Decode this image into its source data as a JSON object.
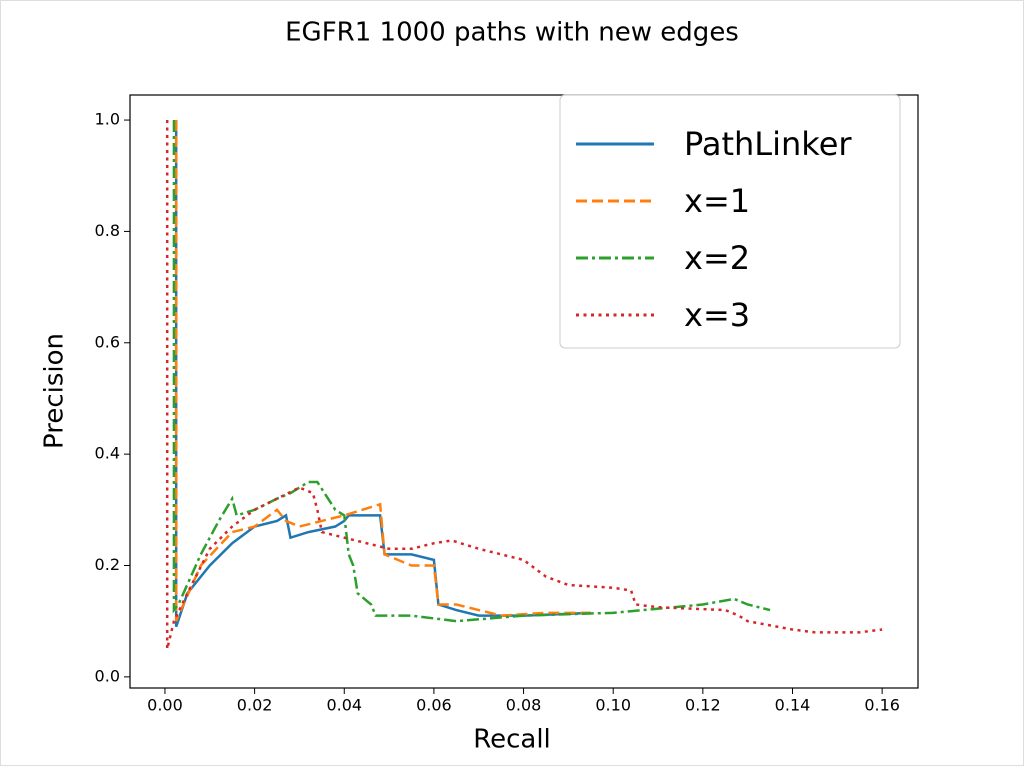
{
  "chart_data": {
    "type": "line",
    "title": "EGFR1 1000 paths with new edges",
    "x_label": "Recall",
    "y_label": "Precision",
    "xlim": [
      -0.0078,
      0.168
    ],
    "ylim": [
      -0.02,
      1.045
    ],
    "xticks": [
      {
        "value": 0,
        "label": "0.00"
      },
      {
        "value": 0.02,
        "label": "0.02"
      },
      {
        "value": 0.04,
        "label": "0.04"
      },
      {
        "value": 0.06,
        "label": "0.06"
      },
      {
        "value": 0.08,
        "label": "0.08"
      },
      {
        "value": 0.1,
        "label": "0.10"
      },
      {
        "value": 0.12,
        "label": "0.12"
      },
      {
        "value": 0.14,
        "label": "0.14"
      },
      {
        "value": 0.16,
        "label": "0.16"
      }
    ],
    "yticks": [
      {
        "value": 0,
        "label": "0.0"
      },
      {
        "value": 0.2,
        "label": "0.2"
      },
      {
        "value": 0.4,
        "label": "0.4"
      },
      {
        "value": 0.6,
        "label": "0.6"
      },
      {
        "value": 0.8,
        "label": "0.8"
      },
      {
        "value": 1,
        "label": "1.0"
      }
    ],
    "legend": "upper right",
    "series": [
      {
        "name": "PathLinker",
        "color": "#1f77b4",
        "linestyle": "solid",
        "x": [
          0.0025,
          0.0025,
          0.005,
          0.01,
          0.015,
          0.02,
          0.025,
          0.027,
          0.028,
          0.032,
          0.038,
          0.04,
          0.041,
          0.048,
          0.049,
          0.055,
          0.06,
          0.061,
          0.065,
          0.07,
          0.08,
          0.095
        ],
        "values": [
          1.0,
          0.09,
          0.15,
          0.2,
          0.24,
          0.27,
          0.28,
          0.29,
          0.25,
          0.26,
          0.27,
          0.28,
          0.29,
          0.29,
          0.22,
          0.22,
          0.21,
          0.13,
          0.12,
          0.11,
          0.11,
          0.115
        ]
      },
      {
        "name": "x=1",
        "color": "#ff7f0e",
        "linestyle": "dashed",
        "x": [
          0.0025,
          0.0025,
          0.003,
          0.008,
          0.015,
          0.02,
          0.025,
          0.027,
          0.03,
          0.035,
          0.04,
          0.048,
          0.049,
          0.055,
          0.06,
          0.061,
          0.065,
          0.07,
          0.075,
          0.085,
          0.095
        ],
        "values": [
          1.0,
          0.1,
          0.11,
          0.2,
          0.26,
          0.27,
          0.3,
          0.28,
          0.27,
          0.28,
          0.29,
          0.31,
          0.22,
          0.2,
          0.2,
          0.13,
          0.13,
          0.12,
          0.11,
          0.115,
          0.115
        ]
      },
      {
        "name": "x=2",
        "color": "#2ca02c",
        "linestyle": "dashdot",
        "x": [
          0.002,
          0.002,
          0.003,
          0.008,
          0.012,
          0.015,
          0.016,
          0.02,
          0.025,
          0.028,
          0.032,
          0.034,
          0.038,
          0.04,
          0.041,
          0.042,
          0.043,
          0.046,
          0.047,
          0.055,
          0.065,
          0.08,
          0.1,
          0.12,
          0.127,
          0.13,
          0.135
        ],
        "values": [
          1.0,
          0.12,
          0.13,
          0.22,
          0.28,
          0.32,
          0.29,
          0.3,
          0.32,
          0.33,
          0.35,
          0.35,
          0.3,
          0.29,
          0.22,
          0.2,
          0.15,
          0.13,
          0.11,
          0.11,
          0.1,
          0.11,
          0.115,
          0.13,
          0.14,
          0.13,
          0.12
        ]
      },
      {
        "name": "x=3",
        "color": "#d62728",
        "linestyle": "dotted",
        "x": [
          0.0005,
          0.0005,
          0.002,
          0.005,
          0.01,
          0.015,
          0.02,
          0.025,
          0.03,
          0.033,
          0.034,
          0.035,
          0.04,
          0.045,
          0.05,
          0.055,
          0.06,
          0.064,
          0.07,
          0.08,
          0.085,
          0.09,
          0.1,
          0.104,
          0.105,
          0.11,
          0.125,
          0.128,
          0.13,
          0.14,
          0.145,
          0.155,
          0.16
        ],
        "values": [
          1.0,
          0.05,
          0.1,
          0.15,
          0.23,
          0.27,
          0.3,
          0.32,
          0.34,
          0.33,
          0.3,
          0.26,
          0.25,
          0.24,
          0.23,
          0.23,
          0.24,
          0.245,
          0.23,
          0.21,
          0.18,
          0.165,
          0.16,
          0.155,
          0.13,
          0.125,
          0.12,
          0.11,
          0.1,
          0.085,
          0.08,
          0.08,
          0.085
        ]
      }
    ]
  }
}
